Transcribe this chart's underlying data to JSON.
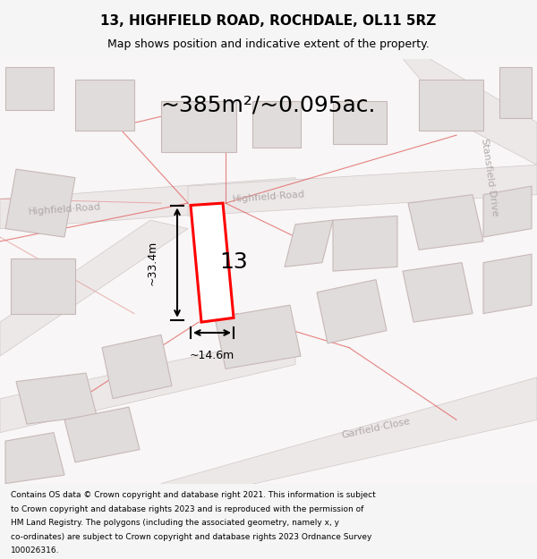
{
  "title_line1": "13, HIGHFIELD ROAD, ROCHDALE, OL11 5RZ",
  "title_line2": "Map shows position and indicative extent of the property.",
  "area_text": "~385m²/~0.095ac.",
  "label_number": "13",
  "dim_height": "~33.4m",
  "dim_width": "~14.6m",
  "footer_lines": [
    "Contains OS data © Crown copyright and database right 2021. This information is subject",
    "to Crown copyright and database rights 2023 and is reproduced with the permission of",
    "HM Land Registry. The polygons (including the associated geometry, namely x, y",
    "co-ordinates) are subject to Crown copyright and database rights 2023 Ordnance Survey",
    "100026316."
  ],
  "bg_color": "#f5f5f5",
  "map_bg": "#ffffff",
  "highlight_color": "#ff0000",
  "title_color": "#000000",
  "footer_color": "#000000",
  "dim_color": "#000000",
  "road_label_color": "#b0a8a8",
  "building_fill": "#e0dcdc",
  "building_edge": "#c8b8b8",
  "road_fill": "#ede8e8",
  "road_edge": "#d0c8c8",
  "red_line_color": "#e05050",
  "pink_line_color": "#e08080"
}
